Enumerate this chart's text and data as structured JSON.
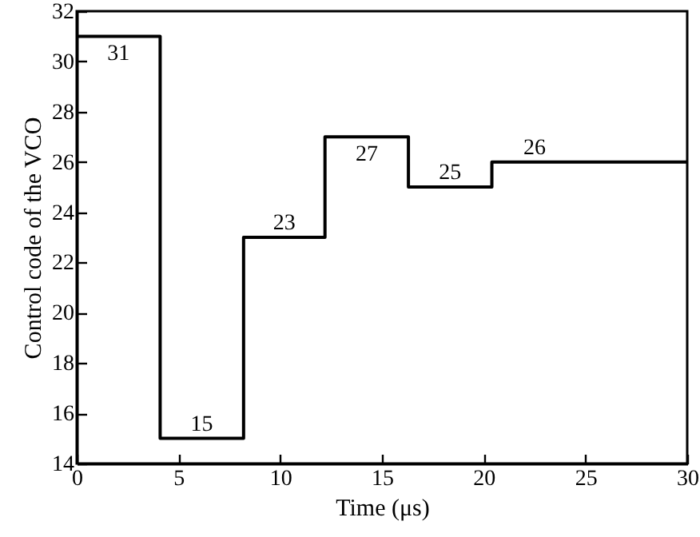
{
  "chart_data": {
    "type": "step",
    "xlabel": "Time (μs)",
    "ylabel": "Control code of the VCO",
    "x": [
      0,
      4.1,
      8.2,
      12.2,
      16.3,
      20.4,
      30
    ],
    "values": [
      31,
      15,
      23,
      27,
      25,
      26,
      26
    ],
    "value_labels": [
      "31",
      "15",
      "23",
      "27",
      "25",
      "26",
      null
    ],
    "color": "#000000",
    "xlim": [
      0,
      30
    ],
    "xticks": [
      0,
      5,
      10,
      15,
      20,
      25,
      30
    ],
    "ylim": [
      14,
      32
    ],
    "yticks": [
      14,
      16,
      18,
      20,
      22,
      24,
      26,
      28,
      30,
      32
    ],
    "grid": false,
    "marker": "none",
    "line_style": "solid"
  }
}
